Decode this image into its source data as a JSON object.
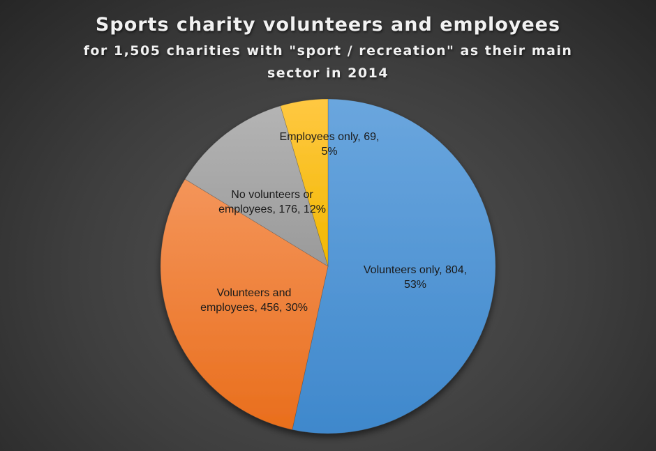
{
  "chart_data": {
    "type": "pie",
    "title": "Sports charity volunteers and employees",
    "subtitle": "for 1,505 charities with \"sport / recreation\" as their main sector in 2014",
    "categories": [
      "Volunteers only",
      "Volunteers and employees",
      "No volunteers or employees",
      "Employees only"
    ],
    "values": [
      804,
      456,
      176,
      69
    ],
    "percentages": [
      53,
      30,
      12,
      5
    ],
    "colors": [
      "#5b9bd5",
      "#ed7d31",
      "#a5a5a5",
      "#ffc000"
    ],
    "total": 1505,
    "legend": "none (data labels on slices)"
  },
  "title": {
    "line1": "Sports charity volunteers and employees",
    "line2": "for 1,505 charities with \"sport / recreation\" as their main",
    "line3": "sector in 2014"
  },
  "labels": {
    "employees_only_1": "Employees only, 69,",
    "employees_only_2": "5%",
    "none_1": "No volunteers or",
    "none_2": "employees, 176, 12%",
    "both_1": "Volunteers and",
    "both_2": "employees, 456, 30%",
    "volunteers_only_1": "Volunteers only, 804,",
    "volunteers_only_2": "53%"
  }
}
